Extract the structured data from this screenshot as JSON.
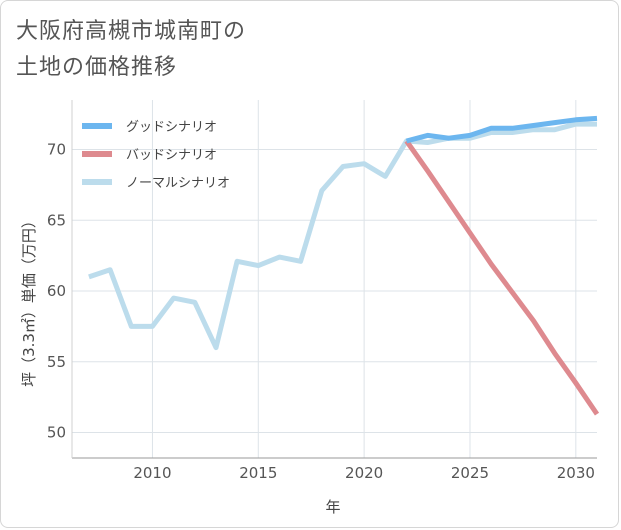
{
  "title": "大阪府高槻市城南町の\n土地の価格推移",
  "chart_data": {
    "type": "line",
    "xlabel": "年",
    "ylabel": "坪（3.3㎡）単価（万円）",
    "xlim": [
      2006.2,
      2031
    ],
    "ylim": [
      48.2,
      73.5
    ],
    "xticks": [
      2010,
      2015,
      2020,
      2025,
      2030
    ],
    "yticks": [
      50,
      55,
      60,
      65,
      70
    ],
    "grid": true,
    "legend_position": "top-left",
    "series": [
      {
        "name": "グッドシナリオ",
        "color": "#6cb6ef",
        "x": [
          2022,
          2023,
          2024,
          2025,
          2026,
          2027,
          2028,
          2029,
          2030,
          2031
        ],
        "y": [
          70.6,
          71.0,
          70.8,
          71.0,
          71.5,
          71.5,
          71.7,
          71.9,
          72.1,
          72.2
        ]
      },
      {
        "name": "バッドシナリオ",
        "color": "#de8a8f",
        "x": [
          2022,
          2023,
          2024,
          2025,
          2026,
          2027,
          2028,
          2029,
          2030,
          2031
        ],
        "y": [
          70.6,
          68.5,
          66.3,
          64.1,
          61.9,
          59.9,
          57.9,
          55.6,
          53.5,
          51.3
        ]
      },
      {
        "name": "ノーマルシナリオ",
        "color": "#bcdcec",
        "x": [
          2007,
          2008,
          2009,
          2010,
          2011,
          2012,
          2013,
          2014,
          2015,
          2016,
          2017,
          2018,
          2019,
          2020,
          2021,
          2022,
          2023,
          2024,
          2025,
          2026,
          2027,
          2028,
          2029,
          2030,
          2031
        ],
        "y": [
          61.0,
          61.5,
          57.5,
          57.5,
          59.5,
          59.2,
          56.0,
          62.1,
          61.8,
          62.4,
          62.1,
          67.1,
          68.8,
          69.0,
          68.1,
          70.6,
          70.5,
          70.8,
          70.8,
          71.2,
          71.2,
          71.4,
          71.4,
          71.8,
          71.8
        ]
      }
    ]
  }
}
